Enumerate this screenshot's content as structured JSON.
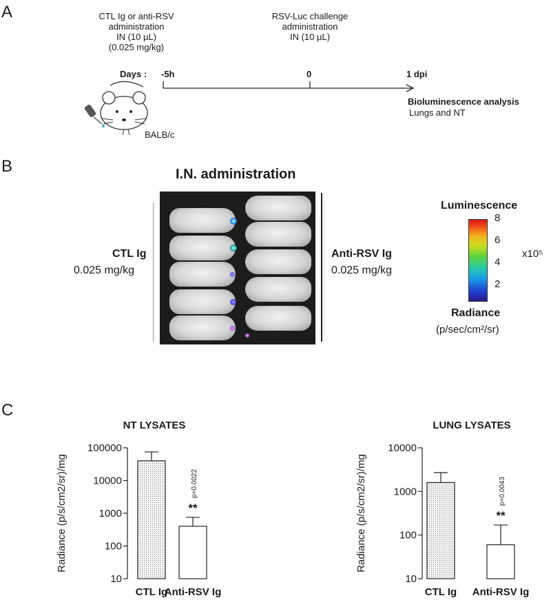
{
  "panels": {
    "a": "A",
    "b": "B",
    "c": "C"
  },
  "timeline": {
    "step1": [
      "CTL Ig or anti-RSV",
      "administration",
      "IN (10 µL)",
      "(0.025 mg/kg)"
    ],
    "step2": [
      "RSV-Luc challenge",
      "administration",
      "IN (10 µL)"
    ],
    "days_label": "Days :",
    "ticks": [
      "-5h",
      "0",
      "1 dpi"
    ],
    "analysis_title": "Bioluminescence analysis",
    "analysis_sub": "Lungs and NT",
    "strain": "BALB/c"
  },
  "imaging": {
    "title": "I.N. administration",
    "left_group": {
      "name": "CTL Ig",
      "dose": "0.025 mg/kg"
    },
    "right_group": {
      "name": "Anti-RSV Ig",
      "dose": "0.025 mg/kg"
    },
    "scale": {
      "top_label": "Luminescence",
      "bottom_label": "Radiance",
      "units": "(p/sec/cm²/sr)",
      "ticks": [
        "8",
        "6",
        "4",
        "2"
      ],
      "multiplier": "x10⁵"
    }
  },
  "chart_data": [
    {
      "type": "bar",
      "title": "NT LYSATES",
      "ylabel": "Radiance (p/s/cm2/sr)/mg",
      "yscale": "log",
      "ylim": [
        10,
        100000
      ],
      "yticks": [
        "100000",
        "10000",
        "1000",
        "100",
        "10"
      ],
      "categories": [
        "CTL Ig",
        "Anti-RSV Ig"
      ],
      "values": [
        40000,
        400
      ],
      "errors_upper": [
        75000,
        750
      ],
      "annotation": {
        "pvalue": "p=0.0022",
        "stars": "**"
      }
    },
    {
      "type": "bar",
      "title": "LUNG LYSATES",
      "ylabel": "Radiance (p/s/cm2/sr)/mg",
      "yscale": "log",
      "ylim": [
        10,
        10000
      ],
      "yticks": [
        "10000",
        "1000",
        "100",
        "10"
      ],
      "categories": [
        "CTL Ig",
        "Anti-RSV Ig"
      ],
      "values": [
        1600,
        60
      ],
      "errors_upper": [
        2700,
        170
      ],
      "annotation": {
        "pvalue": "p=0.0043",
        "stars": "**"
      }
    }
  ]
}
